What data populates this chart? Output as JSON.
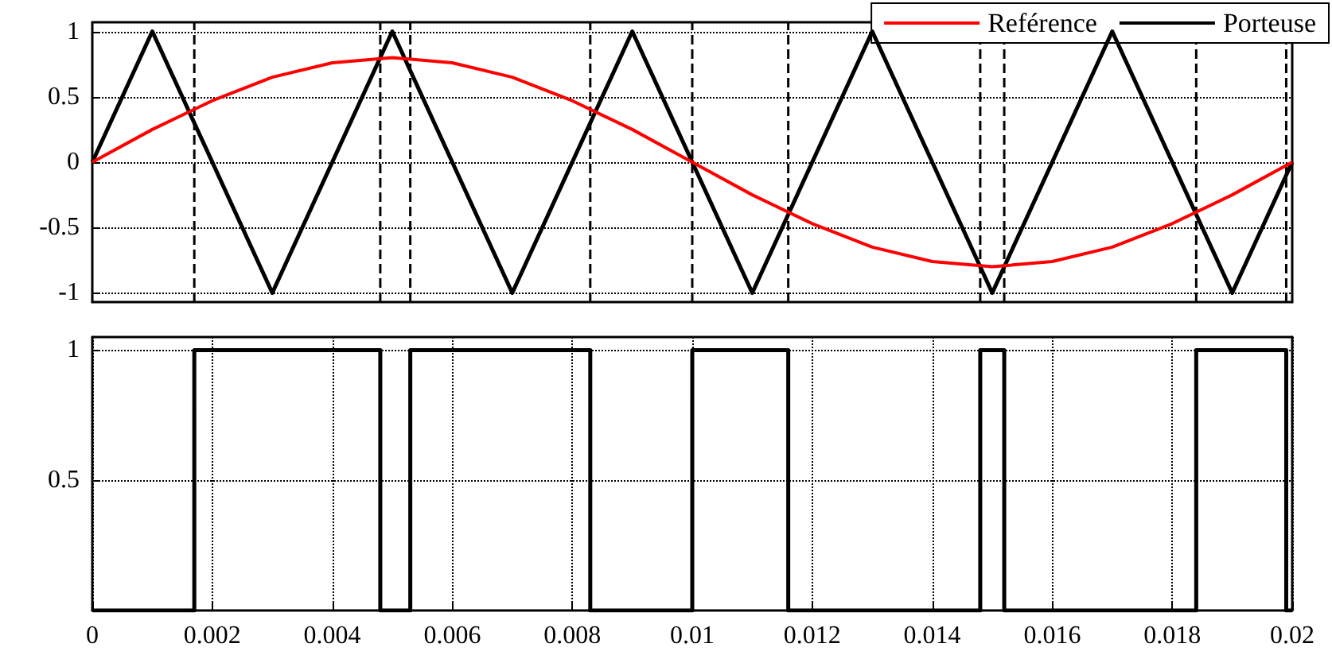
{
  "chart_data": [
    {
      "type": "line",
      "xlim": [
        0,
        0.02
      ],
      "ylim": [
        -1.07,
        1.07
      ],
      "yticks": [
        -1,
        -0.5,
        0,
        0.5,
        1
      ],
      "grid": "y",
      "legend": "top right",
      "tick_labels": "y",
      "marker": "none",
      "series": [
        {
          "name": "Reférence",
          "color": "#ff0000",
          "x": [
            0,
            0.001,
            0.002,
            0.003,
            0.004,
            0.005,
            0.006,
            0.007,
            0.008,
            0.009,
            0.01,
            0.011,
            0.012,
            0.013,
            0.014,
            0.015,
            0.016,
            0.017,
            0.018,
            0.019,
            0.02
          ],
          "values": [
            0,
            0.25,
            0.47,
            0.65,
            0.76,
            0.8,
            0.76,
            0.65,
            0.47,
            0.25,
            0,
            -0.25,
            -0.47,
            -0.65,
            -0.76,
            -0.8,
            -0.76,
            -0.65,
            -0.47,
            -0.25,
            0
          ]
        },
        {
          "name": "Porteuse",
          "color": "#000000",
          "x": [
            0,
            0.001,
            0.003,
            0.005,
            0.007,
            0.009,
            0.011,
            0.013,
            0.015,
            0.017,
            0.019,
            0.02
          ],
          "values": [
            0,
            1,
            -1,
            1,
            -1,
            1,
            -1,
            1,
            -1,
            1,
            -1,
            0
          ]
        }
      ],
      "ref_lines": [
        {
          "axis": "x",
          "value": 0.0017,
          "color": "#000000",
          "line_style": "dashed"
        },
        {
          "axis": "x",
          "value": 0.0048,
          "color": "#000000",
          "line_style": "dashed"
        },
        {
          "axis": "x",
          "value": 0.0053,
          "color": "#000000",
          "line_style": "dashed"
        },
        {
          "axis": "x",
          "value": 0.0083,
          "color": "#000000",
          "line_style": "dashed"
        },
        {
          "axis": "x",
          "value": 0.01,
          "color": "#000000",
          "line_style": "dashed"
        },
        {
          "axis": "x",
          "value": 0.0116,
          "color": "#000000",
          "line_style": "dashed"
        },
        {
          "axis": "x",
          "value": 0.0148,
          "color": "#000000",
          "line_style": "dashed"
        },
        {
          "axis": "x",
          "value": 0.0152,
          "color": "#000000",
          "line_style": "dashed"
        },
        {
          "axis": "x",
          "value": 0.0184,
          "color": "#000000",
          "line_style": "dashed"
        },
        {
          "axis": "x",
          "value": 0.0199,
          "color": "#000000",
          "line_style": "dashed"
        }
      ]
    },
    {
      "type": "step",
      "xlim": [
        0,
        0.02
      ],
      "xticks": [
        0,
        0.002,
        0.004,
        0.006,
        0.008,
        0.01,
        0.012,
        0.014,
        0.016,
        0.018,
        0.02
      ],
      "ylim": [
        0,
        1.05
      ],
      "yticks": [
        0.5,
        1
      ],
      "grid": true,
      "legend": false,
      "marker": "none",
      "series": [
        {
          "color": "#000000",
          "x": [
            0,
            0.0017,
            0.0048,
            0.0053,
            0.0083,
            0.01,
            0.0116,
            0.0148,
            0.0152,
            0.0184,
            0.0199,
            0.02
          ],
          "values": [
            0,
            1,
            0,
            1,
            0,
            1,
            0,
            1,
            0,
            1,
            0,
            0
          ]
        }
      ]
    }
  ]
}
